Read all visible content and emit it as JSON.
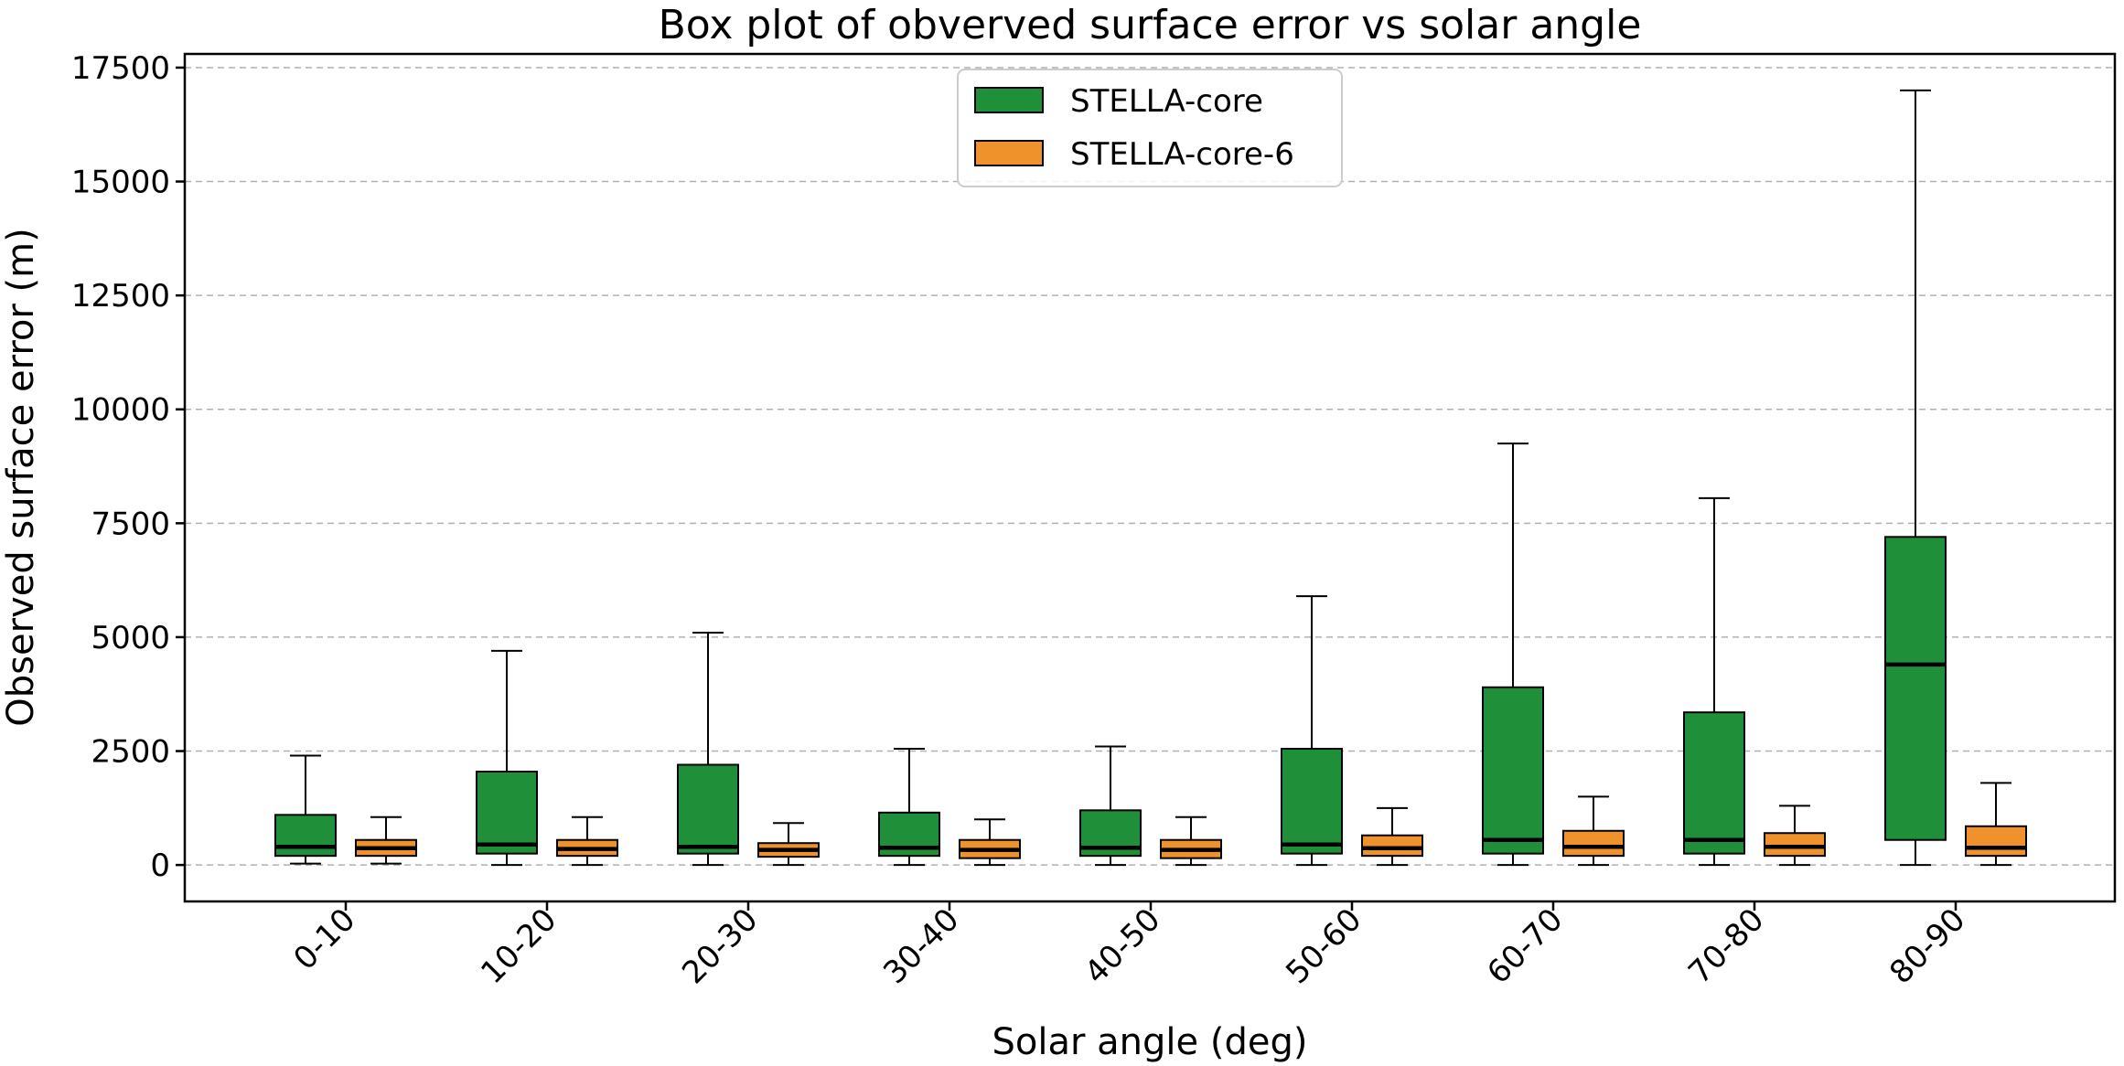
{
  "chart_data": {
    "type": "boxplot",
    "title": "Box plot of obverved surface error vs solar angle",
    "xlabel": "Solar angle (deg)",
    "ylabel": "Observed surface error (m)",
    "ylim": [
      -800,
      17800
    ],
    "yticks": [
      0,
      2500,
      5000,
      7500,
      10000,
      12500,
      15000,
      17500
    ],
    "ytick_labels": [
      "0",
      "2500",
      "5000",
      "7500",
      "10000",
      "12500",
      "15000",
      "17500"
    ],
    "grid": "horizontal dashed",
    "legend_position": "top-center",
    "categories": [
      "0-10",
      "10-20",
      "20-30",
      "30-40",
      "40-50",
      "50-60",
      "60-70",
      "70-80",
      "80-90"
    ],
    "series": [
      {
        "name": "STELLA-core",
        "color": "#1f8f3a",
        "boxes": [
          {
            "whislo": 30,
            "q1": 200,
            "med": 400,
            "q3": 1100,
            "whishi": 2400
          },
          {
            "whislo": 0,
            "q1": 250,
            "med": 450,
            "q3": 2050,
            "whishi": 4700
          },
          {
            "whislo": 0,
            "q1": 250,
            "med": 400,
            "q3": 2200,
            "whishi": 5100
          },
          {
            "whislo": 0,
            "q1": 200,
            "med": 380,
            "q3": 1150,
            "whishi": 2550
          },
          {
            "whislo": 0,
            "q1": 200,
            "med": 380,
            "q3": 1200,
            "whishi": 2600
          },
          {
            "whislo": 0,
            "q1": 250,
            "med": 450,
            "q3": 2550,
            "whishi": 5900
          },
          {
            "whislo": 0,
            "q1": 250,
            "med": 550,
            "q3": 3900,
            "whishi": 9250
          },
          {
            "whislo": 0,
            "q1": 250,
            "med": 550,
            "q3": 3350,
            "whishi": 8050
          },
          {
            "whislo": 0,
            "q1": 550,
            "med": 4400,
            "q3": 7200,
            "whishi": 17000
          }
        ]
      },
      {
        "name": "STELLA-core-6",
        "color": "#f0922c",
        "boxes": [
          {
            "whislo": 30,
            "q1": 200,
            "med": 370,
            "q3": 550,
            "whishi": 1050
          },
          {
            "whislo": 0,
            "q1": 200,
            "med": 350,
            "q3": 550,
            "whishi": 1050
          },
          {
            "whislo": 0,
            "q1": 180,
            "med": 330,
            "q3": 480,
            "whishi": 920
          },
          {
            "whislo": 0,
            "q1": 150,
            "med": 330,
            "q3": 550,
            "whishi": 1000
          },
          {
            "whislo": 0,
            "q1": 150,
            "med": 330,
            "q3": 550,
            "whishi": 1050
          },
          {
            "whislo": 0,
            "q1": 200,
            "med": 370,
            "q3": 650,
            "whishi": 1250
          },
          {
            "whislo": 0,
            "q1": 200,
            "med": 400,
            "q3": 750,
            "whishi": 1500
          },
          {
            "whislo": 0,
            "q1": 200,
            "med": 400,
            "q3": 700,
            "whishi": 1300
          },
          {
            "whislo": 0,
            "q1": 200,
            "med": 380,
            "q3": 850,
            "whishi": 1800
          }
        ]
      }
    ]
  }
}
